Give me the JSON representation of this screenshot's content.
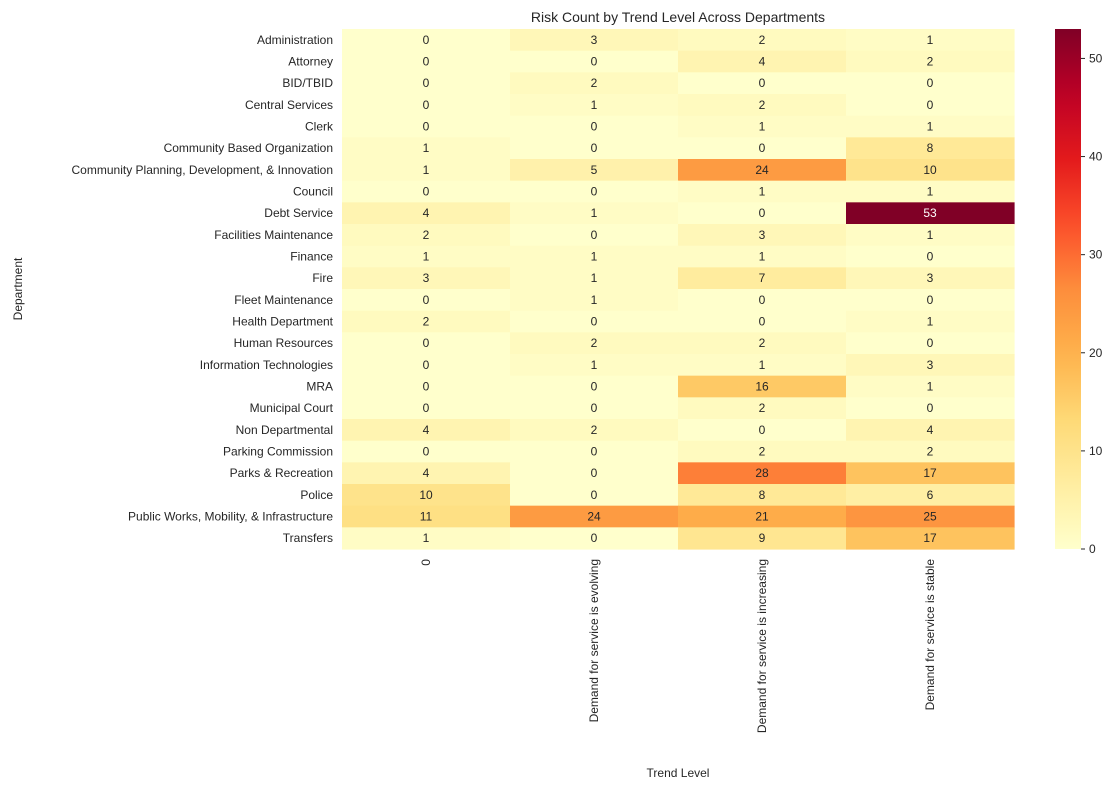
{
  "chart_data": {
    "type": "heatmap",
    "title": "Risk Count by Trend Level Across Departments",
    "xlabel": "Trend Level",
    "ylabel": "Department",
    "columns": [
      "0",
      "Demand for service is evolving",
      "Demand for service is increasing",
      "Demand for service is stable"
    ],
    "rows": [
      "Administration",
      "Attorney",
      "BID/TBID",
      "Central Services",
      "Clerk",
      "Community Based Organization",
      "Community Planning, Development, & Innovation",
      "Council",
      "Debt Service",
      "Facilities Maintenance",
      "Finance",
      "Fire",
      "Fleet Maintenance",
      "Health Department",
      "Human Resources",
      "Information Technologies",
      "MRA",
      "Municipal Court",
      "Non Departmental",
      "Parking Commission",
      "Parks & Recreation",
      "Police",
      "Public Works, Mobility, & Infrastructure",
      "Transfers"
    ],
    "values": [
      [
        0,
        3,
        2,
        1
      ],
      [
        0,
        0,
        4,
        2
      ],
      [
        0,
        2,
        0,
        0
      ],
      [
        0,
        1,
        2,
        0
      ],
      [
        0,
        0,
        1,
        1
      ],
      [
        1,
        0,
        0,
        8
      ],
      [
        1,
        5,
        24,
        10
      ],
      [
        0,
        0,
        1,
        1
      ],
      [
        4,
        1,
        0,
        53
      ],
      [
        2,
        0,
        3,
        1
      ],
      [
        1,
        1,
        1,
        0
      ],
      [
        3,
        1,
        7,
        3
      ],
      [
        0,
        1,
        0,
        0
      ],
      [
        2,
        0,
        0,
        1
      ],
      [
        0,
        2,
        2,
        0
      ],
      [
        0,
        1,
        1,
        3
      ],
      [
        0,
        0,
        16,
        1
      ],
      [
        0,
        0,
        2,
        0
      ],
      [
        4,
        2,
        0,
        4
      ],
      [
        0,
        0,
        2,
        2
      ],
      [
        4,
        0,
        28,
        17
      ],
      [
        10,
        0,
        8,
        6
      ],
      [
        11,
        24,
        21,
        25
      ],
      [
        1,
        0,
        9,
        17
      ]
    ],
    "colormap": "YlOrRd",
    "colorbar": {
      "range": [
        0,
        53
      ],
      "ticks": [
        0,
        10,
        20,
        30,
        40,
        50
      ]
    },
    "annotations": true
  }
}
